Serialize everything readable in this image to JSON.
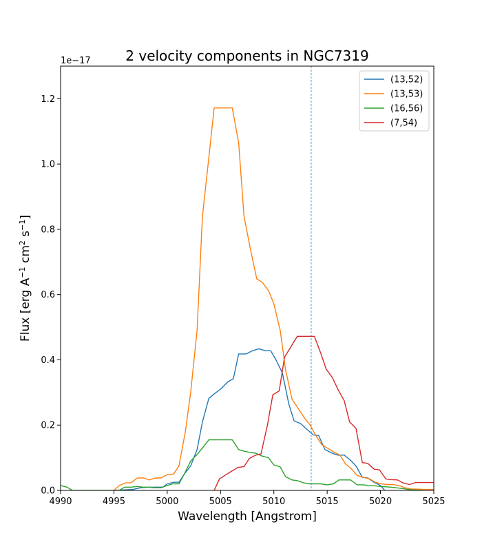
{
  "chart_data": {
    "type": "line",
    "title": "2 velocity components in NGC7319",
    "xlabel": "Wavelength [Angstrom]",
    "ylabel_parts": [
      "Flux [erg A",
      "−1",
      " cm",
      "2",
      " s",
      "−1",
      "]"
    ],
    "offset_label": "1e−17",
    "xlim": [
      4990,
      5025
    ],
    "ylim": [
      0,
      1.3
    ],
    "xticks": [
      4990,
      4995,
      5000,
      5005,
      5010,
      5015,
      5020,
      5025
    ],
    "yticks": [
      0.0,
      0.2,
      0.4,
      0.6,
      0.8,
      1.0,
      1.2
    ],
    "xtick_labels": [
      "4990",
      "4995",
      "5000",
      "5005",
      "5010",
      "5015",
      "5020",
      "5025"
    ],
    "ytick_labels": [
      "0.0",
      "0.2",
      "0.4",
      "0.6",
      "0.8",
      "1.0",
      "1.2"
    ],
    "vline": {
      "x": 5013.5,
      "style": "dashed",
      "color": "#1f77b4"
    },
    "legend_position": "top-right",
    "series": [
      {
        "name": "(13,52)",
        "color": "#1f77b4",
        "points": [
          [
            4995.0,
            0.0
          ],
          [
            4996.8,
            0.003
          ],
          [
            4997.5,
            0.008
          ],
          [
            4998.3,
            0.01
          ],
          [
            4999.0,
            0.01
          ],
          [
            4999.6,
            0.01
          ],
          [
            5000.0,
            0.02
          ],
          [
            5000.6,
            0.025
          ],
          [
            5001.1,
            0.025
          ],
          [
            5001.6,
            0.05
          ],
          [
            5002.2,
            0.075
          ],
          [
            5002.8,
            0.125
          ],
          [
            5003.3,
            0.21
          ],
          [
            5003.9,
            0.282
          ],
          [
            5004.5,
            0.298
          ],
          [
            5005.0,
            0.31
          ],
          [
            5005.7,
            0.333
          ],
          [
            5006.2,
            0.342
          ],
          [
            5006.7,
            0.418
          ],
          [
            5007.4,
            0.418
          ],
          [
            5008.0,
            0.428
          ],
          [
            5008.6,
            0.434
          ],
          [
            5009.2,
            0.428
          ],
          [
            5009.7,
            0.428
          ],
          [
            5010.2,
            0.4
          ],
          [
            5010.8,
            0.36
          ],
          [
            5011.4,
            0.265
          ],
          [
            5011.9,
            0.213
          ],
          [
            5012.5,
            0.205
          ],
          [
            5013.0,
            0.19
          ],
          [
            5013.7,
            0.17
          ],
          [
            5014.2,
            0.168
          ],
          [
            5014.8,
            0.125
          ],
          [
            5015.4,
            0.115
          ],
          [
            5016.0,
            0.108
          ],
          [
            5016.6,
            0.108
          ],
          [
            5017.1,
            0.095
          ],
          [
            5017.7,
            0.075
          ],
          [
            5018.3,
            0.04
          ],
          [
            5018.8,
            0.038
          ],
          [
            5019.4,
            0.025
          ],
          [
            5020.0,
            0.015
          ],
          [
            5020.4,
            0.0
          ]
        ]
      },
      {
        "name": "(13,53)",
        "color": "#ff7f0e",
        "points": [
          [
            4995.0,
            0.0
          ],
          [
            4995.5,
            0.015
          ],
          [
            4996.1,
            0.023
          ],
          [
            4996.6,
            0.023
          ],
          [
            4997.2,
            0.038
          ],
          [
            4997.8,
            0.038
          ],
          [
            4998.3,
            0.032
          ],
          [
            4998.9,
            0.038
          ],
          [
            4999.4,
            0.038
          ],
          [
            5000.0,
            0.048
          ],
          [
            5000.6,
            0.05
          ],
          [
            5001.1,
            0.075
          ],
          [
            5001.7,
            0.18
          ],
          [
            5002.2,
            0.3
          ],
          [
            5002.8,
            0.49
          ],
          [
            5003.3,
            0.84
          ],
          [
            5003.9,
            1.02
          ],
          [
            5004.4,
            1.172
          ],
          [
            5005.0,
            1.172
          ],
          [
            5005.6,
            1.172
          ],
          [
            5006.1,
            1.172
          ],
          [
            5006.7,
            1.065
          ],
          [
            5007.2,
            0.84
          ],
          [
            5007.8,
            0.74
          ],
          [
            5008.4,
            0.648
          ],
          [
            5008.9,
            0.638
          ],
          [
            5009.5,
            0.612
          ],
          [
            5010.0,
            0.572
          ],
          [
            5010.6,
            0.49
          ],
          [
            5011.1,
            0.37
          ],
          [
            5011.7,
            0.28
          ],
          [
            5012.3,
            0.25
          ],
          [
            5012.8,
            0.225
          ],
          [
            5013.4,
            0.2
          ],
          [
            5013.9,
            0.17
          ],
          [
            5014.5,
            0.14
          ],
          [
            5015.1,
            0.128
          ],
          [
            5015.6,
            0.118
          ],
          [
            5016.2,
            0.108
          ],
          [
            5016.7,
            0.082
          ],
          [
            5017.3,
            0.065
          ],
          [
            5017.8,
            0.046
          ],
          [
            5018.4,
            0.04
          ],
          [
            5019.0,
            0.035
          ],
          [
            5019.5,
            0.025
          ],
          [
            5020.1,
            0.02
          ],
          [
            5020.6,
            0.018
          ],
          [
            5021.2,
            0.018
          ],
          [
            5021.8,
            0.014
          ],
          [
            5022.3,
            0.008
          ],
          [
            5022.9,
            0.004
          ],
          [
            5023.4,
            0.004
          ],
          [
            5024.0,
            0.003
          ],
          [
            5025.0,
            0.003
          ]
        ]
      },
      {
        "name": "(16,56)",
        "color": "#2ca02c",
        "points": [
          [
            4990.0,
            0.015
          ],
          [
            4990.6,
            0.01
          ],
          [
            4991.1,
            0.0
          ],
          [
            4995.5,
            0.0
          ],
          [
            4996.0,
            0.01
          ],
          [
            4996.6,
            0.01
          ],
          [
            4997.2,
            0.012
          ],
          [
            4997.7,
            0.01
          ],
          [
            4998.3,
            0.01
          ],
          [
            4998.8,
            0.008
          ],
          [
            4999.4,
            0.008
          ],
          [
            5000.0,
            0.015
          ],
          [
            5000.5,
            0.02
          ],
          [
            5001.1,
            0.02
          ],
          [
            5001.6,
            0.05
          ],
          [
            5002.2,
            0.09
          ],
          [
            5002.8,
            0.11
          ],
          [
            5003.3,
            0.13
          ],
          [
            5003.9,
            0.155
          ],
          [
            5004.4,
            0.155
          ],
          [
            5005.0,
            0.155
          ],
          [
            5005.5,
            0.155
          ],
          [
            5006.1,
            0.155
          ],
          [
            5006.7,
            0.125
          ],
          [
            5007.2,
            0.12
          ],
          [
            5007.8,
            0.116
          ],
          [
            5008.3,
            0.114
          ],
          [
            5008.9,
            0.105
          ],
          [
            5009.5,
            0.1
          ],
          [
            5010.0,
            0.078
          ],
          [
            5010.6,
            0.072
          ],
          [
            5011.1,
            0.042
          ],
          [
            5011.7,
            0.032
          ],
          [
            5012.2,
            0.03
          ],
          [
            5012.8,
            0.023
          ],
          [
            5013.3,
            0.02
          ],
          [
            5013.9,
            0.02
          ],
          [
            5014.4,
            0.02
          ],
          [
            5015.0,
            0.017
          ],
          [
            5015.6,
            0.02
          ],
          [
            5016.1,
            0.032
          ],
          [
            5016.7,
            0.032
          ],
          [
            5017.2,
            0.032
          ],
          [
            5017.8,
            0.017
          ],
          [
            5018.4,
            0.017
          ],
          [
            5018.9,
            0.015
          ],
          [
            5019.5,
            0.014
          ],
          [
            5020.0,
            0.012
          ],
          [
            5021.0,
            0.01
          ],
          [
            5022.0,
            0.006
          ],
          [
            5022.8,
            0.002
          ],
          [
            5023.4,
            0.001
          ],
          [
            5024.0,
            0.0
          ]
        ]
      },
      {
        "name": "(7,54)",
        "color": "#d62728",
        "points": [
          [
            5004.4,
            0.0
          ],
          [
            5004.9,
            0.035
          ],
          [
            5005.5,
            0.048
          ],
          [
            5006.1,
            0.06
          ],
          [
            5006.6,
            0.07
          ],
          [
            5007.2,
            0.073
          ],
          [
            5007.7,
            0.098
          ],
          [
            5008.3,
            0.108
          ],
          [
            5008.8,
            0.112
          ],
          [
            5009.4,
            0.2
          ],
          [
            5009.9,
            0.293
          ],
          [
            5010.5,
            0.305
          ],
          [
            5011.0,
            0.408
          ],
          [
            5011.6,
            0.44
          ],
          [
            5012.2,
            0.472
          ],
          [
            5012.7,
            0.472
          ],
          [
            5013.3,
            0.472
          ],
          [
            5013.8,
            0.472
          ],
          [
            5014.4,
            0.42
          ],
          [
            5014.9,
            0.372
          ],
          [
            5015.5,
            0.345
          ],
          [
            5016.0,
            0.31
          ],
          [
            5016.6,
            0.275
          ],
          [
            5017.1,
            0.21
          ],
          [
            5017.7,
            0.19
          ],
          [
            5018.3,
            0.085
          ],
          [
            5018.8,
            0.083
          ],
          [
            5019.4,
            0.065
          ],
          [
            5019.9,
            0.063
          ],
          [
            5020.5,
            0.035
          ],
          [
            5021.0,
            0.033
          ],
          [
            5021.6,
            0.032
          ],
          [
            5022.1,
            0.023
          ],
          [
            5022.7,
            0.018
          ],
          [
            5023.3,
            0.024
          ],
          [
            5025.0,
            0.024
          ]
        ]
      }
    ]
  }
}
